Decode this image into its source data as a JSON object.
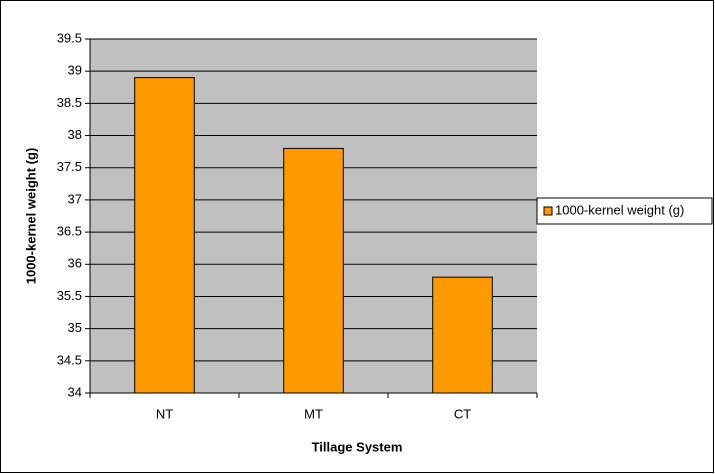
{
  "chart_data": {
    "type": "bar",
    "categories": [
      "NT",
      "MT",
      "CT"
    ],
    "series": [
      {
        "name": "1000-kernel weight (g)",
        "color": "#ff9900",
        "values": [
          38.9,
          37.8,
          35.8
        ]
      }
    ],
    "x_label": "Tillage System",
    "y_label": "1000-kernel weight (g)",
    "ylim": [
      34,
      39.5
    ],
    "yticks": [
      34,
      34.5,
      35,
      35.5,
      36,
      36.5,
      37,
      37.5,
      38,
      38.5,
      39,
      39.5
    ],
    "grid": true,
    "legend": "right"
  }
}
